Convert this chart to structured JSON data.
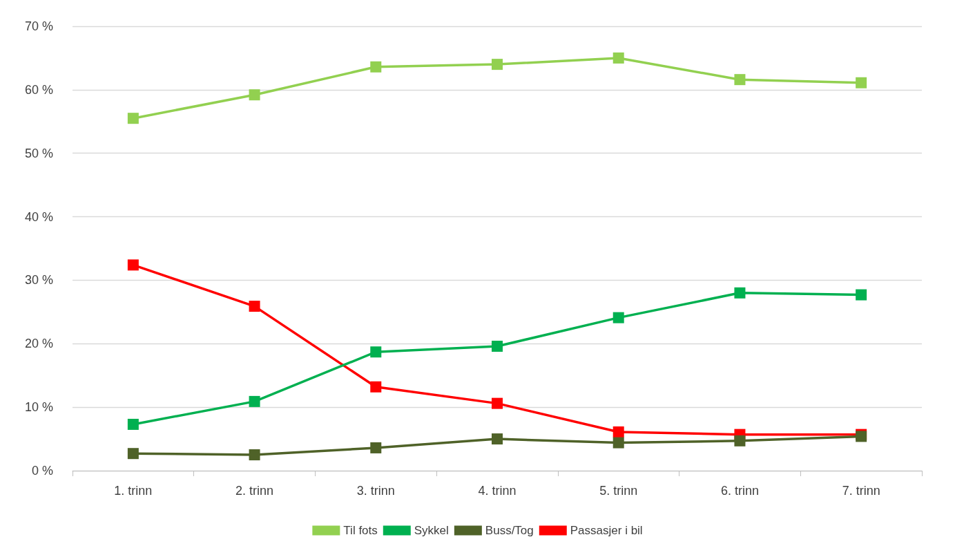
{
  "chart_data": {
    "type": "line",
    "categories": [
      "1. trinn",
      "2. trinn",
      "3. trinn",
      "4. trinn",
      "5. trinn",
      "6. trinn",
      "7. trinn"
    ],
    "series": [
      {
        "name": "Til fots",
        "color": "#92d050",
        "values": [
          55.5,
          59.2,
          63.6,
          64.0,
          65.0,
          61.6,
          61.1
        ]
      },
      {
        "name": "Sykkel",
        "color": "#00b050",
        "values": [
          7.3,
          10.9,
          18.7,
          19.6,
          24.1,
          28.0,
          27.7
        ]
      },
      {
        "name": "Buss/Tog",
        "color": "#4f6228",
        "values": [
          2.7,
          2.5,
          3.6,
          5.0,
          4.4,
          4.7,
          5.4
        ]
      },
      {
        "name": "Passasjer i bil",
        "color": "#ff0000",
        "values": [
          32.4,
          25.9,
          13.2,
          10.6,
          6.1,
          5.7,
          5.7
        ]
      }
    ],
    "ylim": [
      0,
      70
    ],
    "yticks": [
      {
        "value": 0,
        "label": "0 %"
      },
      {
        "value": 10,
        "label": "10 %"
      },
      {
        "value": 20,
        "label": "20 %"
      },
      {
        "value": 30,
        "label": "30 %"
      },
      {
        "value": 40,
        "label": "40 %"
      },
      {
        "value": 50,
        "label": "50 %"
      },
      {
        "value": 60,
        "label": "60 %"
      },
      {
        "value": 70,
        "label": "70 %"
      }
    ],
    "grid": "y",
    "legend": "bottom",
    "marker": "square",
    "line_style": "solid"
  }
}
